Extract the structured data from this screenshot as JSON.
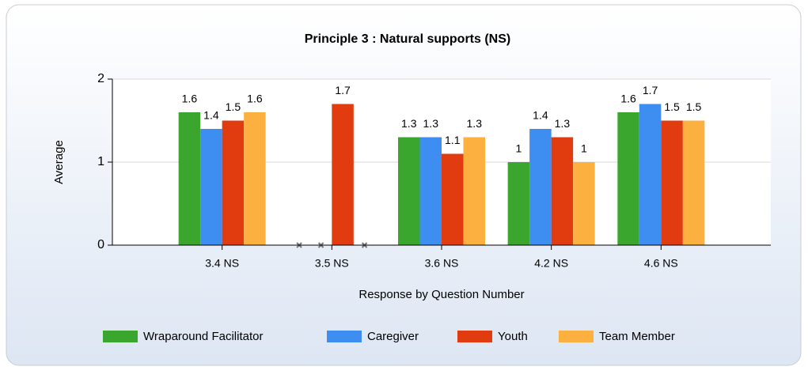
{
  "chart_data": {
    "type": "bar",
    "title": "Principle 3 : Natural supports (NS)",
    "x_label": "Response by Question Number",
    "y_label": "Average",
    "categories": [
      "3.4 NS",
      "3.5 NS",
      "3.6 NS",
      "4.2 NS",
      "4.6 NS"
    ],
    "series": [
      {
        "name": "Wraparound Facilitator",
        "color": "#3aa62e",
        "values": [
          1.6,
          null,
          1.3,
          1,
          1.6
        ]
      },
      {
        "name": "Caregiver",
        "color": "#3d8ef0",
        "values": [
          1.4,
          null,
          1.3,
          1.4,
          1.7
        ]
      },
      {
        "name": "Youth",
        "color": "#e03c0f",
        "values": [
          1.5,
          1.7,
          1.1,
          1.3,
          1.5
        ]
      },
      {
        "name": "Team Member",
        "color": "#fbb040",
        "values": [
          1.6,
          null,
          1.3,
          1,
          1.5
        ]
      }
    ],
    "ylim": [
      0,
      2
    ],
    "yticks": [
      0,
      1,
      2
    ],
    "grid": true,
    "legend": "bottom"
  }
}
